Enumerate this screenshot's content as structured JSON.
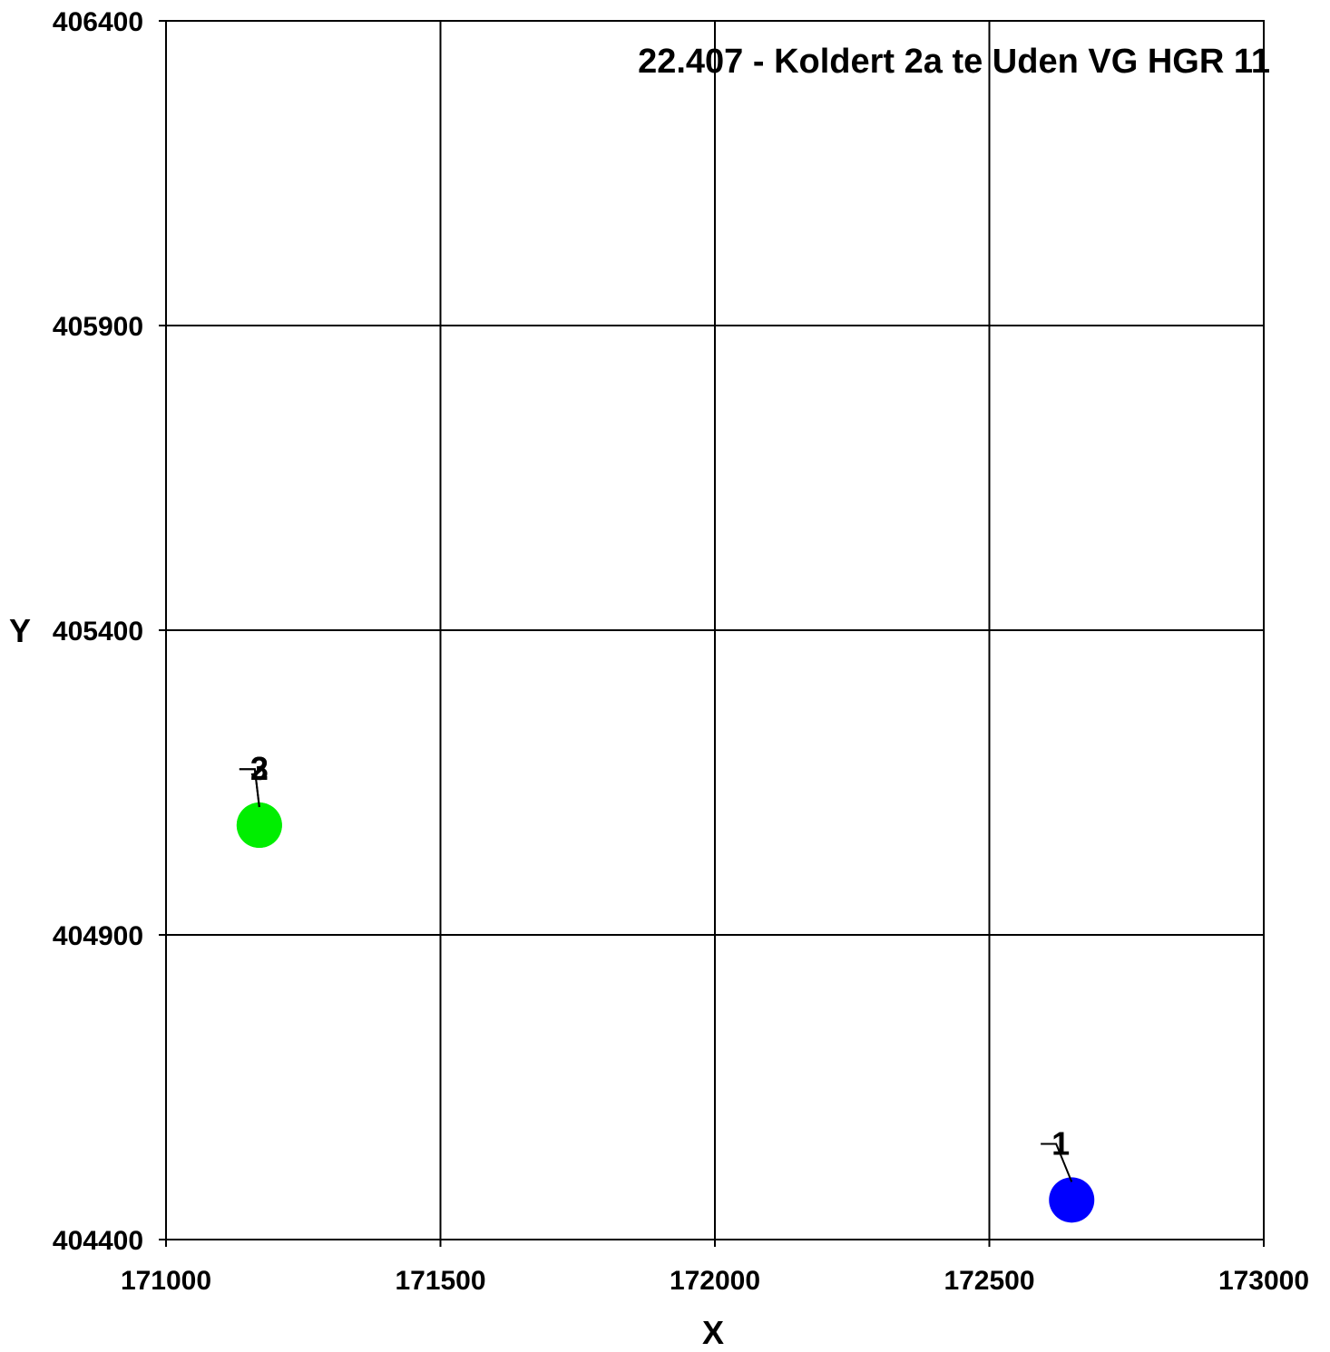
{
  "chart_data": {
    "type": "scatter",
    "title": "22.407 - Koldert 2a te Uden VG HGR 11",
    "xlabel": "X",
    "ylabel": "Y",
    "xlim": [
      171000,
      173000
    ],
    "ylim": [
      404400,
      406400
    ],
    "xticks": [
      "171000",
      "171500",
      "172000",
      "172500",
      "173000"
    ],
    "yticks": [
      "404400",
      "404900",
      "405400",
      "405900",
      "406400"
    ],
    "grid": true,
    "points": [
      {
        "label": "1",
        "x": 172650,
        "y": 404465,
        "color": "#0000ff",
        "label_x": 172630,
        "label_y": 404560
      },
      {
        "label": "2",
        "x": 171170,
        "y": 405080,
        "color": "#00ee00",
        "label_x": 171170,
        "label_y": 405175
      },
      {
        "label": "3",
        "x": 171170,
        "y": 405080,
        "color": "#00ee00",
        "label_x": 171170,
        "label_y": 405175
      }
    ]
  }
}
